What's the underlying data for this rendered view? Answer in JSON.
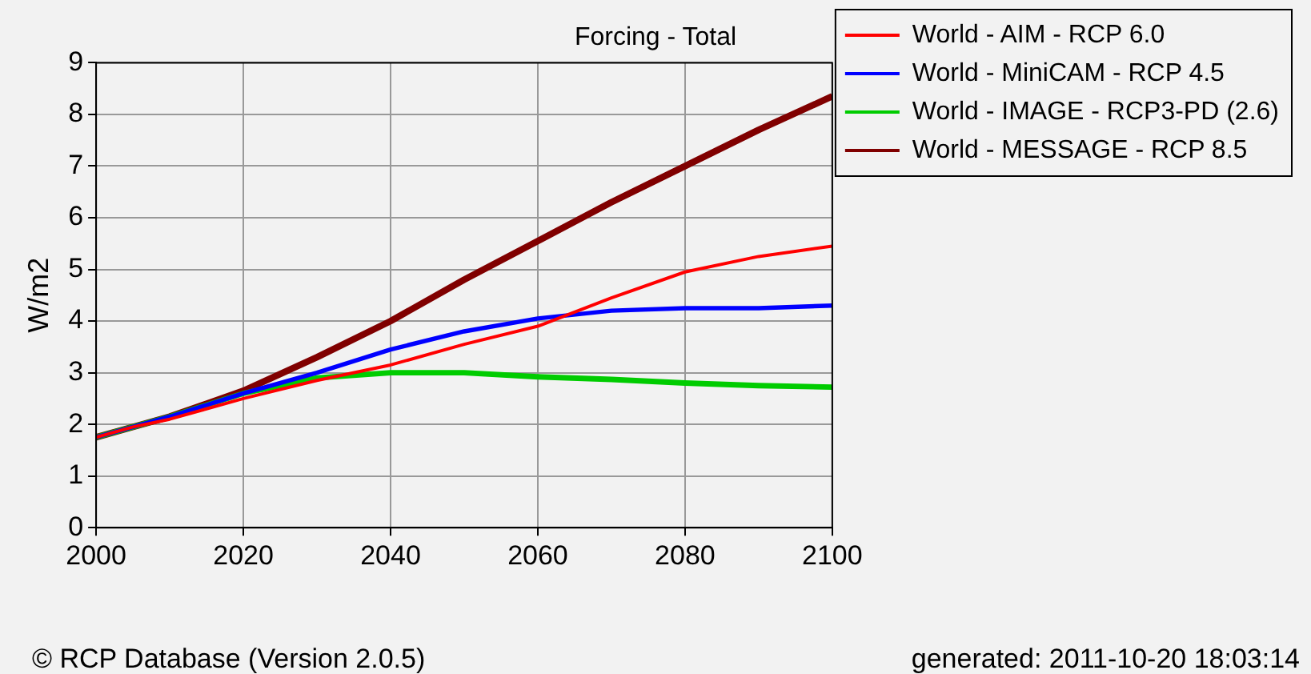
{
  "chart_data": {
    "type": "line",
    "title": "Forcing - Total",
    "ylabel": "W/m2",
    "x": [
      2000,
      2005,
      2010,
      2020,
      2030,
      2040,
      2050,
      2060,
      2070,
      2080,
      2090,
      2100
    ],
    "series": [
      {
        "name": "World - AIM - RCP 6.0",
        "color": "#ff0000",
        "values": [
          1.75,
          1.95,
          2.1,
          2.5,
          2.85,
          3.15,
          3.55,
          3.9,
          4.45,
          4.95,
          5.25,
          5.45
        ]
      },
      {
        "name": "World - MiniCAM - RCP 4.5",
        "color": "#0000ff",
        "values": [
          1.75,
          1.95,
          2.15,
          2.6,
          3.0,
          3.45,
          3.8,
          4.05,
          4.2,
          4.25,
          4.25,
          4.3
        ]
      },
      {
        "name": "World - IMAGE - RCP3-PD (2.6)",
        "color": "#00cc00",
        "values": [
          1.75,
          1.95,
          2.15,
          2.6,
          2.9,
          3.0,
          3.0,
          2.92,
          2.87,
          2.8,
          2.75,
          2.72
        ]
      },
      {
        "name": "World - MESSAGE - RCP 8.5",
        "color": "#800000",
        "values": [
          1.75,
          1.95,
          2.15,
          2.65,
          3.3,
          4.0,
          4.8,
          5.55,
          6.3,
          7.0,
          7.7,
          8.35
        ]
      }
    ],
    "xlim": [
      2000,
      2100
    ],
    "xticks": [
      2000,
      2020,
      2040,
      2060,
      2080,
      2100
    ],
    "ylim": [
      0,
      9
    ],
    "yticks": [
      0,
      1,
      2,
      3,
      4,
      5,
      6,
      7,
      8,
      9
    ],
    "grid": true,
    "legend": "right",
    "marker": "none",
    "line_style": "solid",
    "annotations": [
      "© RCP Database (Version 2.0.5)",
      "generated: 2011-10-20 18:03:14"
    ]
  }
}
